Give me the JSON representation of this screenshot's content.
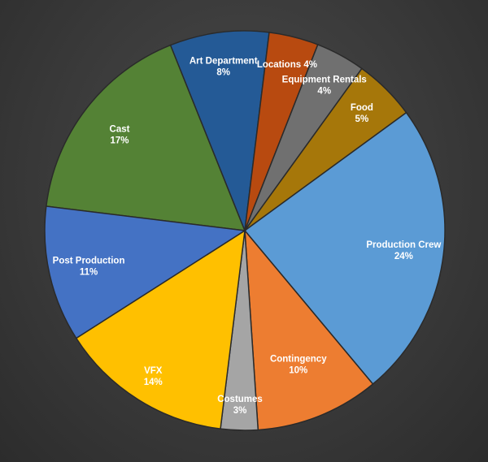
{
  "chart_data": {
    "type": "pie",
    "title": "",
    "slices": [
      {
        "name": "Cast",
        "value": 17,
        "label": "Cast",
        "pct": "17%",
        "color": "#548235"
      },
      {
        "name": "Art Department",
        "value": 8,
        "label": "Art Department",
        "pct": "8%",
        "color": "#245a96"
      },
      {
        "name": "Locations",
        "value": 4,
        "label": "Locations 4%",
        "pct": "",
        "color": "#b84a10"
      },
      {
        "name": "Equipment Rentals",
        "value": 4,
        "label": "Equipment Rentals",
        "pct": "4%",
        "color": "#707070"
      },
      {
        "name": "Food",
        "value": 5,
        "label": "Food",
        "pct": "5%",
        "color": "#a6770a"
      },
      {
        "name": "Production Crew",
        "value": 24,
        "label": "Production Crew",
        "pct": "24%",
        "color": "#5b9bd5"
      },
      {
        "name": "Contingency",
        "value": 10,
        "label": "Contingency",
        "pct": "10%",
        "color": "#ed7d31"
      },
      {
        "name": "Costumes",
        "value": 3,
        "label": "Costumes",
        "pct": "3%",
        "color": "#a5a5a5"
      },
      {
        "name": "VFX",
        "value": 14,
        "label": "VFX",
        "pct": "14%",
        "color": "#ffc000"
      },
      {
        "name": "Post Production",
        "value": 11,
        "label": "Post Production",
        "pct": "11%",
        "color": "#4472c4"
      }
    ]
  }
}
